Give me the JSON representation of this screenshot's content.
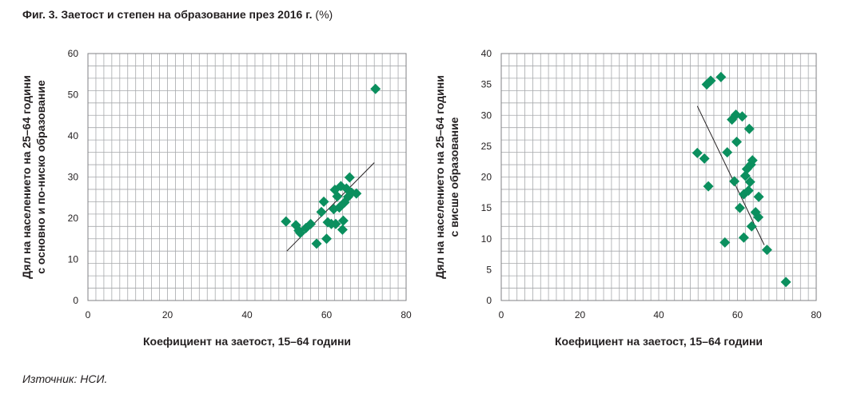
{
  "figure": {
    "title_main": "Фиг. 3. Заетост и степен на образование през 2016 г.",
    "title_unit": "(%)",
    "source": "Източник: НСИ."
  },
  "chart_data": [
    {
      "type": "scatter",
      "xlabel": "Коефициент на заетост, 15–64 години",
      "ylabel": [
        "Дял на населението на 25–64 години",
        "с основно и по-ниско образование"
      ],
      "xlim": [
        0,
        80
      ],
      "ylim": [
        0,
        60
      ],
      "x_ticks": [
        0,
        20,
        40,
        60,
        80
      ],
      "y_ticks": [
        0,
        10,
        20,
        30,
        40,
        50,
        60
      ],
      "grid": true,
      "marker": "diamond",
      "marker_color": "#0b8f5e",
      "points": [
        {
          "x": 49.8,
          "y": 19.2
        },
        {
          "x": 52.3,
          "y": 18.3
        },
        {
          "x": 53.0,
          "y": 17.0
        },
        {
          "x": 53.4,
          "y": 16.4
        },
        {
          "x": 54.8,
          "y": 17.6
        },
        {
          "x": 56.0,
          "y": 18.6
        },
        {
          "x": 57.5,
          "y": 13.8
        },
        {
          "x": 58.7,
          "y": 21.5
        },
        {
          "x": 59.3,
          "y": 24.0
        },
        {
          "x": 60.0,
          "y": 15.0
        },
        {
          "x": 60.3,
          "y": 19.0
        },
        {
          "x": 61.2,
          "y": 18.6
        },
        {
          "x": 61.8,
          "y": 22.2
        },
        {
          "x": 62.1,
          "y": 26.9
        },
        {
          "x": 62.7,
          "y": 25.3
        },
        {
          "x": 62.3,
          "y": 18.6
        },
        {
          "x": 63.2,
          "y": 22.6
        },
        {
          "x": 63.6,
          "y": 27.8
        },
        {
          "x": 64.2,
          "y": 19.4
        },
        {
          "x": 64.0,
          "y": 17.2
        },
        {
          "x": 64.5,
          "y": 23.8
        },
        {
          "x": 65.0,
          "y": 27.2
        },
        {
          "x": 65.8,
          "y": 29.9
        },
        {
          "x": 65.4,
          "y": 25.2
        },
        {
          "x": 66.3,
          "y": 26.2
        },
        {
          "x": 67.5,
          "y": 26.0
        },
        {
          "x": 72.3,
          "y": 51.4
        }
      ],
      "trendline": {
        "x1": 50.0,
        "y1": 12.0,
        "x2": 72.0,
        "y2": 33.5
      }
    },
    {
      "type": "scatter",
      "xlabel": "Коефициент на заетост, 15–64 години",
      "ylabel": [
        "Дял на населението на 25–64 години",
        "с висше образование"
      ],
      "xlim": [
        0,
        80
      ],
      "ylim": [
        0,
        40
      ],
      "x_ticks": [
        0,
        20,
        40,
        60,
        80
      ],
      "y_ticks": [
        0,
        5,
        10,
        15,
        20,
        25,
        30,
        35,
        40
      ],
      "grid": true,
      "marker": "diamond",
      "marker_color": "#0b8f5e",
      "points": [
        {
          "x": 49.8,
          "y": 23.9
        },
        {
          "x": 51.6,
          "y": 23.0
        },
        {
          "x": 52.2,
          "y": 35.0
        },
        {
          "x": 53.2,
          "y": 35.6
        },
        {
          "x": 52.6,
          "y": 18.5
        },
        {
          "x": 55.8,
          "y": 36.2
        },
        {
          "x": 56.8,
          "y": 9.4
        },
        {
          "x": 57.4,
          "y": 24.0
        },
        {
          "x": 58.6,
          "y": 29.3
        },
        {
          "x": 59.2,
          "y": 19.3
        },
        {
          "x": 59.6,
          "y": 30.1
        },
        {
          "x": 59.8,
          "y": 25.7
        },
        {
          "x": 60.6,
          "y": 15.0
        },
        {
          "x": 61.2,
          "y": 29.8
        },
        {
          "x": 61.6,
          "y": 10.2
        },
        {
          "x": 61.6,
          "y": 17.2
        },
        {
          "x": 62.0,
          "y": 20.2
        },
        {
          "x": 62.4,
          "y": 21.3
        },
        {
          "x": 62.8,
          "y": 17.8
        },
        {
          "x": 63.2,
          "y": 19.2
        },
        {
          "x": 63.0,
          "y": 27.8
        },
        {
          "x": 63.4,
          "y": 22.0
        },
        {
          "x": 63.8,
          "y": 22.7
        },
        {
          "x": 63.6,
          "y": 12.0
        },
        {
          "x": 64.6,
          "y": 14.3
        },
        {
          "x": 65.3,
          "y": 13.5
        },
        {
          "x": 65.4,
          "y": 16.8
        },
        {
          "x": 67.5,
          "y": 8.2
        },
        {
          "x": 72.3,
          "y": 3.0
        }
      ],
      "trendline": {
        "x1": 49.8,
        "y1": 31.5,
        "x2": 66.8,
        "y2": 9.0
      }
    }
  ]
}
